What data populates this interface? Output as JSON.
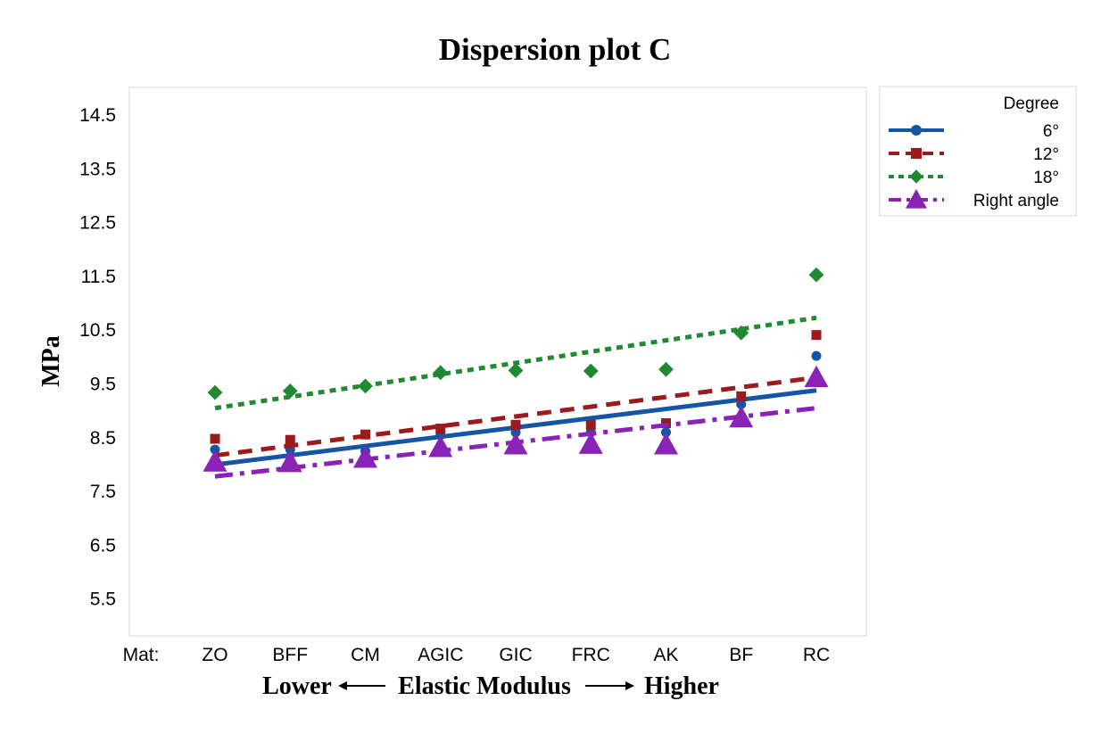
{
  "chart_data": {
    "type": "scatter",
    "title": "Dispersion plot C",
    "ylabel": "MPa",
    "xlabel": {
      "left": "Lower",
      "middle": "Elastic Modulus",
      "right": "Higher"
    },
    "x_axis_prefix": "Mat:",
    "categories": [
      "ZO",
      "BFF",
      "CM",
      "AGIC",
      "GIC",
      "FRC",
      "AK",
      "BF",
      "RC"
    ],
    "y_ticks": [
      "14.5",
      "13.5",
      "12.5",
      "11.5",
      "10.5",
      "9.5",
      "8.5",
      "7.5",
      "6.5",
      "5.5"
    ],
    "ylim": [
      5.0,
      15.0
    ],
    "grid": false,
    "legend": {
      "title": "Degree",
      "position": "right-outside-top"
    },
    "series": [
      {
        "name": "6°",
        "color": "#1555a6",
        "marker": "circle",
        "line_style": "solid",
        "values": [
          8.28,
          8.28,
          8.25,
          8.55,
          8.6,
          8.6,
          8.6,
          9.12,
          10.02
        ],
        "trend": [
          8.0,
          9.38
        ]
      },
      {
        "name": "12°",
        "color": "#9c1a1c",
        "marker": "square",
        "line_style": "dashed",
        "values": [
          8.48,
          8.46,
          8.56,
          8.67,
          8.74,
          8.74,
          8.77,
          9.27,
          10.41
        ],
        "trend": [
          8.17,
          9.62
        ]
      },
      {
        "name": "18°",
        "color": "#1f8a32",
        "marker": "diamond",
        "line_style": "dotted",
        "values": [
          9.34,
          9.37,
          9.46,
          9.71,
          9.75,
          9.74,
          9.77,
          10.45,
          11.53
        ],
        "trend": [
          9.05,
          10.73
        ]
      },
      {
        "name": "Right angle",
        "color": "#8b22b8",
        "marker": "triangle",
        "line_style": "dashdot",
        "values": [
          8.05,
          8.04,
          8.12,
          8.32,
          8.37,
          8.38,
          8.37,
          8.87,
          9.62
        ],
        "trend": [
          7.78,
          9.05
        ]
      }
    ]
  }
}
